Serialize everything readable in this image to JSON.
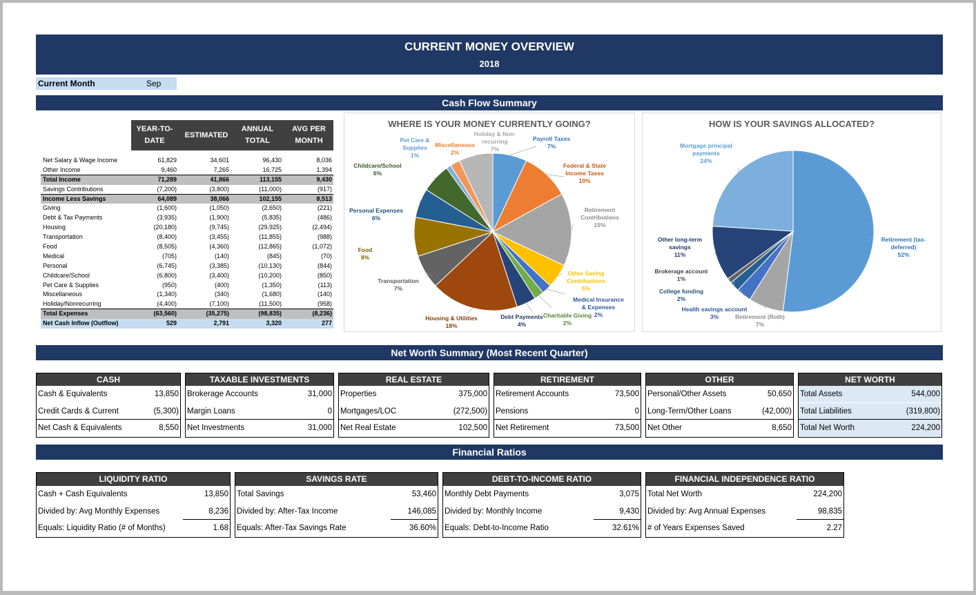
{
  "header": {
    "title": "CURRENT MONEY OVERVIEW",
    "year": "2018"
  },
  "current_month": {
    "label": "Current Month",
    "value": "Sep"
  },
  "sections": {
    "cash_flow": "Cash Flow Summary",
    "net_worth": "Net Worth Summary (Most Recent Quarter)",
    "ratios": "Financial Ratios"
  },
  "cash_flow_table": {
    "columns": [
      "YEAR-TO-\nDATE",
      "ESTIMATED",
      "ANNUAL\nTOTAL",
      "AVG PER\nMONTH"
    ],
    "rows": [
      {
        "label": "Net Salary & Wage Income",
        "v": [
          "61,829",
          "34,601",
          "96,430",
          "8,036"
        ],
        "style": ""
      },
      {
        "label": "Other Income",
        "v": [
          "9,460",
          "7,265",
          "16,725",
          "1,394"
        ],
        "style": "ul"
      },
      {
        "label": "Total Income",
        "v": [
          "71,289",
          "41,866",
          "113,155",
          "9,430"
        ],
        "style": "gray"
      },
      {
        "label": "Savings Contributions",
        "v": [
          "(7,200)",
          "(3,800)",
          "(11,000)",
          "(917)"
        ],
        "style": "ul"
      },
      {
        "label": "Income Less Savings",
        "v": [
          "64,089",
          "38,066",
          "102,155",
          "8,513"
        ],
        "style": "gray"
      },
      {
        "label": "Giving",
        "v": [
          "(1,600)",
          "(1,050)",
          "(2,650)",
          "(221)"
        ],
        "style": ""
      },
      {
        "label": "Debt & Tax Payments",
        "v": [
          "(3,935)",
          "(1,900)",
          "(5,835)",
          "(486)"
        ],
        "style": ""
      },
      {
        "label": "Housing",
        "v": [
          "(20,180)",
          "(9,745)",
          "(29,925)",
          "(2,494)"
        ],
        "style": ""
      },
      {
        "label": "Transportation",
        "v": [
          "(8,400)",
          "(3,455)",
          "(11,855)",
          "(988)"
        ],
        "style": ""
      },
      {
        "label": "Food",
        "v": [
          "(8,505)",
          "(4,360)",
          "(12,865)",
          "(1,072)"
        ],
        "style": ""
      },
      {
        "label": "Medical",
        "v": [
          "(705)",
          "(140)",
          "(845)",
          "(70)"
        ],
        "style": ""
      },
      {
        "label": "Personal",
        "v": [
          "(6,745)",
          "(3,385)",
          "(10,130)",
          "(844)"
        ],
        "style": ""
      },
      {
        "label": "Childcare/School",
        "v": [
          "(6,800)",
          "(3,400)",
          "(10,200)",
          "(850)"
        ],
        "style": ""
      },
      {
        "label": "Pet Care & Supplies",
        "v": [
          "(950)",
          "(400)",
          "(1,350)",
          "(113)"
        ],
        "style": ""
      },
      {
        "label": "Miscellaneous",
        "v": [
          "(1,340)",
          "(340)",
          "(1,680)",
          "(140)"
        ],
        "style": ""
      },
      {
        "label": "Holiday/Nonrecurring",
        "v": [
          "(4,400)",
          "(7,100)",
          "(11,500)",
          "(958)"
        ],
        "style": "ul"
      },
      {
        "label": "Total Expenses",
        "v": [
          "(63,560)",
          "(35,275)",
          "(98,835)",
          "(8,236)"
        ],
        "style": "gray"
      },
      {
        "label": "Net Cash Inflow (Outflow)",
        "v": [
          "529",
          "2,791",
          "3,320",
          "277"
        ],
        "style": "blue"
      }
    ]
  },
  "chart_data": [
    {
      "type": "pie",
      "title": "WHERE IS YOUR MONEY CURRENTLY GOING?",
      "slices": [
        {
          "name": "Payroll Taxes",
          "pct": "7%",
          "value": 7,
          "color": "#5b9bd5",
          "label_color": "#2e75b6"
        },
        {
          "name": "Federal & State Income Taxes",
          "pct": "10%",
          "value": 10,
          "color": "#ed7d31",
          "label_color": "#c55a11"
        },
        {
          "name": "Retirement Contributions",
          "pct": "15%",
          "value": 15,
          "color": "#a5a5a5",
          "label_color": "#8c8c8c"
        },
        {
          "name": "Other Saving Contributions",
          "pct": "5%",
          "value": 5,
          "color": "#ffc000",
          "label_color": "#ffc000"
        },
        {
          "name": "Medical Insurance & Expenses",
          "pct": "2%",
          "value": 2,
          "color": "#4472c4",
          "label_color": "#2f5597"
        },
        {
          "name": "Charitable Giving",
          "pct": "2%",
          "value": 2,
          "color": "#70ad47",
          "label_color": "#548235"
        },
        {
          "name": "Debt Payments",
          "pct": "4%",
          "value": 4,
          "color": "#264478",
          "label_color": "#203864"
        },
        {
          "name": "Housing & Utilities",
          "pct": "18%",
          "value": 18,
          "color": "#9e480e",
          "label_color": "#843c0c"
        },
        {
          "name": "Transportation",
          "pct": "7%",
          "value": 7,
          "color": "#636363",
          "label_color": "#595959"
        },
        {
          "name": "Food",
          "pct": "8%",
          "value": 8,
          "color": "#997300",
          "label_color": "#7f6000"
        },
        {
          "name": "Personal Expenses",
          "pct": "6%",
          "value": 6,
          "color": "#255e91",
          "label_color": "#1f4e79"
        },
        {
          "name": "Childcare/School",
          "pct": "6%",
          "value": 6,
          "color": "#43682b",
          "label_color": "#375623"
        },
        {
          "name": "Pet Care & Supplies",
          "pct": "1%",
          "value": 1,
          "color": "#7cafdd",
          "label_color": "#5b9bd5"
        },
        {
          "name": "Miscellaneous",
          "pct": "2%",
          "value": 2,
          "color": "#f1975a",
          "label_color": "#ed7d31"
        },
        {
          "name": "Holiday & Non-recurring",
          "pct": "7%",
          "value": 7,
          "color": "#b7b7b7",
          "label_color": "#a5a5a5"
        }
      ]
    },
    {
      "type": "pie",
      "title": "HOW IS YOUR SAVINGS ALLOCATED?",
      "slices": [
        {
          "name": "Retirement (tax-deferred)",
          "pct": "52%",
          "value": 52,
          "color": "#5b9bd5",
          "label_color": "#2e75b6"
        },
        {
          "name": "Retirement (Roth)",
          "pct": "7%",
          "value": 7,
          "color": "#a5a5a5",
          "label_color": "#8c8c8c"
        },
        {
          "name": "Health savings account",
          "pct": "3%",
          "value": 3,
          "color": "#4472c4",
          "label_color": "#2f5597"
        },
        {
          "name": "College funding",
          "pct": "2%",
          "value": 2,
          "color": "#255e91",
          "label_color": "#1f4e79"
        },
        {
          "name": "Brokerage account",
          "pct": "1%",
          "value": 1,
          "color": "#636363",
          "label_color": "#404040"
        },
        {
          "name": "Other long-term savings",
          "pct": "11%",
          "value": 11,
          "color": "#264478",
          "label_color": "#203864"
        },
        {
          "name": "Mortgage principal payments",
          "pct": "24%",
          "value": 24,
          "color": "#7cafdd",
          "label_color": "#5b9bd5"
        }
      ]
    }
  ],
  "net_worth": [
    {
      "title": "CASH",
      "rows": [
        [
          "Cash & Equivalents",
          "13,850"
        ],
        [
          "Credit Cards & Current",
          "(5,300)"
        ],
        [
          "Net Cash & Equivalents",
          "8,550"
        ]
      ]
    },
    {
      "title": "TAXABLE INVESTMENTS",
      "rows": [
        [
          "Brokerage Accounts",
          "31,000"
        ],
        [
          "Margin Loans",
          "0"
        ],
        [
          "Net Investments",
          "31,000"
        ]
      ]
    },
    {
      "title": "REAL ESTATE",
      "rows": [
        [
          "Properties",
          "375,000"
        ],
        [
          "Mortgages/LOC",
          "(272,500)"
        ],
        [
          "Net Real Estate",
          "102,500"
        ]
      ]
    },
    {
      "title": "RETIREMENT",
      "rows": [
        [
          "Retirement Accounts",
          "73,500"
        ],
        [
          "Pensions",
          "0"
        ],
        [
          "Net Retirement",
          "73,500"
        ]
      ]
    },
    {
      "title": "OTHER",
      "rows": [
        [
          "Personal/Other Assets",
          "50,650"
        ],
        [
          "Long-Term/Other Loans",
          "(42,000)"
        ],
        [
          "Net Other",
          "8,650"
        ]
      ]
    },
    {
      "title": "NET WORTH",
      "rows": [
        [
          "Total Assets",
          "544,000"
        ],
        [
          "Total Liabilities",
          "(319,800)"
        ],
        [
          "Total Net Worth",
          "224,200"
        ]
      ]
    }
  ],
  "ratios": [
    {
      "title": "LIQUIDITY RATIO",
      "rows": [
        [
          "Cash + Cash Equivalents",
          "13,850"
        ],
        [
          "Divided by: Avg Monthly Expenses",
          "8,236"
        ],
        [
          "Equals: Liquidity Ratio (# of Months)",
          "1.68"
        ]
      ]
    },
    {
      "title": "SAVINGS RATE",
      "rows": [
        [
          "Total Savings",
          "53,460"
        ],
        [
          "Divided by: After-Tax Income",
          "146,085"
        ],
        [
          "Equals: After-Tax Savings Rate",
          "36.60%"
        ]
      ]
    },
    {
      "title": "DEBT-TO-INCOME RATIO",
      "rows": [
        [
          "Monthly Debt Payments",
          "3,075"
        ],
        [
          "Divided by: Monthly Income",
          "9,430"
        ],
        [
          "Equals: Debt-to-Income Ratio",
          "32.61%"
        ]
      ]
    },
    {
      "title": "FINANCIAL INDEPENDENCE RATIO",
      "rows": [
        [
          "Total Net Worth",
          "224,200"
        ],
        [
          "Divided by: Avg Annual Expenses",
          "98,835"
        ],
        [
          "# of Years Expenses Saved",
          "2.27"
        ]
      ]
    }
  ]
}
